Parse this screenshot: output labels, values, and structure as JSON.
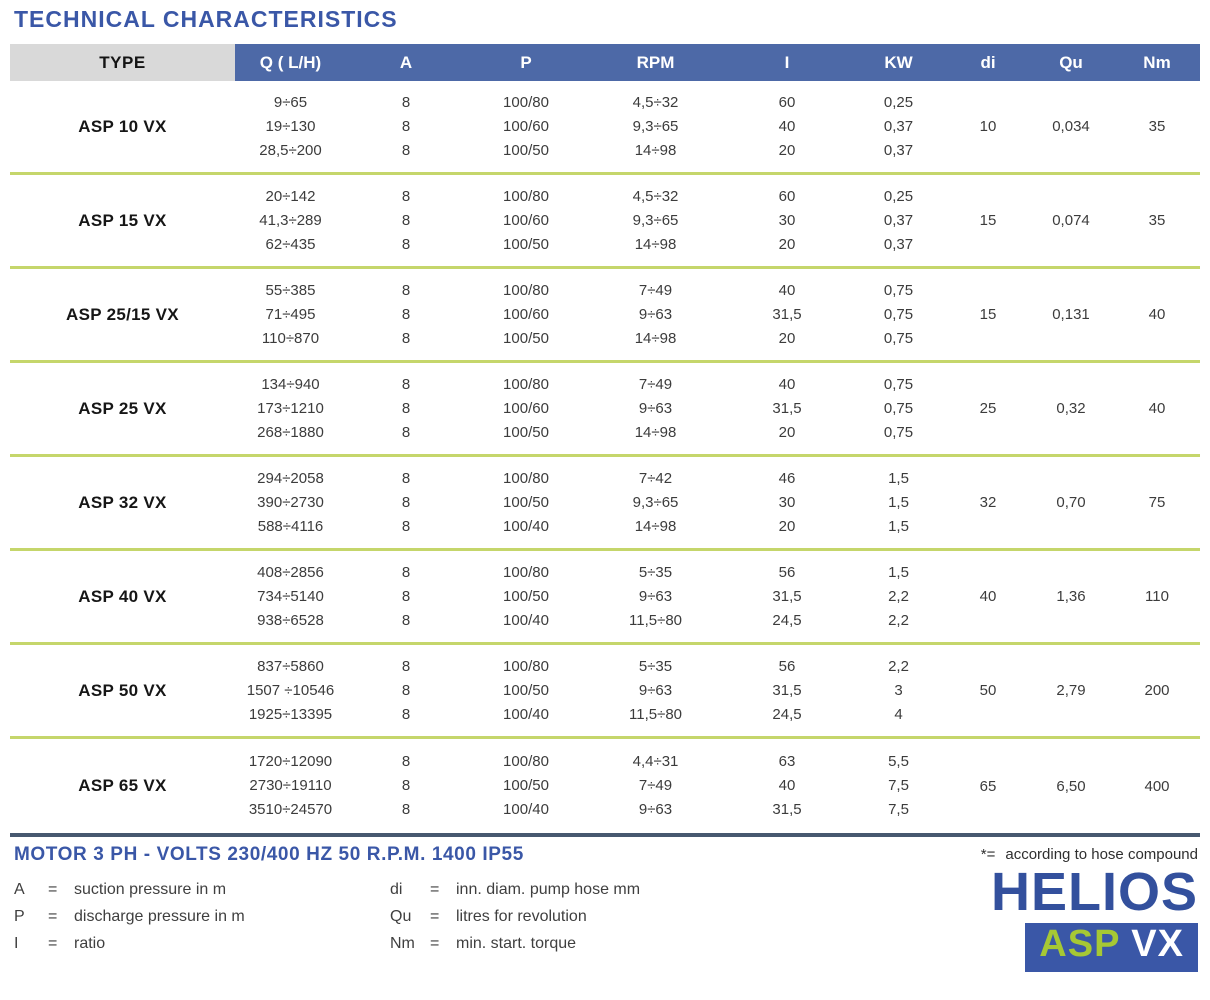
{
  "title": "TECHNICAL CHARACTERISTICS",
  "table": {
    "columns": [
      "TYPE",
      "Q ( L/H)",
      "A",
      "P",
      "RPM",
      "I",
      "KW",
      "di",
      "Qu",
      "Nm"
    ],
    "rows": [
      {
        "type": "ASP 10 VX",
        "q": [
          "9÷65",
          "19÷130",
          "28,5÷200"
        ],
        "a": [
          "8",
          "8",
          "8"
        ],
        "p": [
          "100/80",
          "100/60",
          "100/50"
        ],
        "rpm": [
          "4,5÷32",
          "9,3÷65",
          "14÷98"
        ],
        "i": [
          "60",
          "40",
          "20"
        ],
        "kw": [
          "0,25",
          "0,37",
          "0,37"
        ],
        "di": "10",
        "qu": "0,034",
        "nm": "35"
      },
      {
        "type": "ASP 15 VX",
        "q": [
          "20÷142",
          "41,3÷289",
          "62÷435"
        ],
        "a": [
          "8",
          "8",
          "8"
        ],
        "p": [
          "100/80",
          "100/60",
          "100/50"
        ],
        "rpm": [
          "4,5÷32",
          "9,3÷65",
          "14÷98"
        ],
        "i": [
          "60",
          "30",
          "20"
        ],
        "kw": [
          "0,25",
          "0,37",
          "0,37"
        ],
        "di": "15",
        "qu": "0,074",
        "nm": "35"
      },
      {
        "type": "ASP 25/15 VX",
        "q": [
          "55÷385",
          "71÷495",
          "110÷870"
        ],
        "a": [
          "8",
          "8",
          "8"
        ],
        "p": [
          "100/80",
          "100/60",
          "100/50"
        ],
        "rpm": [
          "7÷49",
          "9÷63",
          "14÷98"
        ],
        "i": [
          "40",
          "31,5",
          "20"
        ],
        "kw": [
          "0,75",
          "0,75",
          "0,75"
        ],
        "di": "15",
        "qu": "0,131",
        "nm": "40"
      },
      {
        "type": "ASP 25 VX",
        "q": [
          "134÷940",
          "173÷1210",
          "268÷1880"
        ],
        "a": [
          "8",
          "8",
          "8"
        ],
        "p": [
          "100/80",
          "100/60",
          "100/50"
        ],
        "rpm": [
          "7÷49",
          "9÷63",
          "14÷98"
        ],
        "i": [
          "40",
          "31,5",
          "20"
        ],
        "kw": [
          "0,75",
          "0,75",
          "0,75"
        ],
        "di": "25",
        "qu": "0,32",
        "nm": "40"
      },
      {
        "type": "ASP 32 VX",
        "q": [
          "294÷2058",
          "390÷2730",
          "588÷4116"
        ],
        "a": [
          "8",
          "8",
          "8"
        ],
        "p": [
          "100/80",
          "100/50",
          "100/40"
        ],
        "rpm": [
          "7÷42",
          "9,3÷65",
          "14÷98"
        ],
        "i": [
          "46",
          "30",
          "20"
        ],
        "kw": [
          "1,5",
          "1,5",
          "1,5"
        ],
        "di": "32",
        "qu": "0,70",
        "nm": "75"
      },
      {
        "type": "ASP 40 VX",
        "q": [
          "408÷2856",
          "734÷5140",
          "938÷6528"
        ],
        "a": [
          "8",
          "8",
          "8"
        ],
        "p": [
          "100/80",
          "100/50",
          "100/40"
        ],
        "rpm": [
          "5÷35",
          "9÷63",
          "11,5÷80"
        ],
        "i": [
          "56",
          "31,5",
          "24,5"
        ],
        "kw": [
          "1,5",
          "2,2",
          "2,2"
        ],
        "di": "40",
        "qu": "1,36",
        "nm": "110"
      },
      {
        "type": "ASP 50 VX",
        "q": [
          "837÷5860",
          "1507 ÷10546",
          "1925÷13395"
        ],
        "a": [
          "8",
          "8",
          "8"
        ],
        "p": [
          "100/80",
          "100/50",
          "100/40"
        ],
        "rpm": [
          "5÷35",
          "9÷63",
          "11,5÷80"
        ],
        "i": [
          "56",
          "31,5",
          "24,5"
        ],
        "kw": [
          "2,2",
          "3",
          "4"
        ],
        "di": "50",
        "qu": "2,79",
        "nm": "200"
      },
      {
        "type": "ASP 65 VX",
        "q": [
          "1720÷12090",
          "2730÷19110",
          "3510÷24570"
        ],
        "a": [
          "8",
          "8",
          "8"
        ],
        "p": [
          "100/80",
          "100/50",
          "100/40"
        ],
        "rpm": [
          "4,4÷31",
          "7÷49",
          "9÷63"
        ],
        "i": [
          "63",
          "40",
          "31,5"
        ],
        "kw": [
          "5,5",
          "7,5",
          "7,5"
        ],
        "di": "65",
        "qu": "6,50",
        "nm": "400"
      }
    ]
  },
  "footer": {
    "motor_line": "MOTOR 3 PH - VOLTS 230/400 HZ 50 R.P.M. 1400 IP55",
    "legend_left": [
      {
        "symbol": "A",
        "eq": "=",
        "desc": "suction pressure in m"
      },
      {
        "symbol": "P",
        "eq": "=",
        "desc": "discharge pressure in m"
      },
      {
        "symbol": "I",
        "eq": "=",
        "desc": "ratio"
      }
    ],
    "legend_right": [
      {
        "symbol": "di",
        "eq": "=",
        "desc": "inn. diam. pump hose mm"
      },
      {
        "symbol": "Qu",
        "eq": "=",
        "desc": "litres for revolution"
      },
      {
        "symbol": "Nm",
        "eq": "=",
        "desc": "min. start. torque"
      }
    ],
    "note_prefix": "*=",
    "note_text": "according to hose compound",
    "brand": "HELIOS",
    "badge": {
      "asp": "ASP",
      "vx": " VX"
    }
  },
  "colors": {
    "title_blue": "#3a57a7",
    "header_blue": "#4d69a7",
    "header_gray": "#d9d9d9",
    "separator_green": "#c5d66b",
    "bottom_line": "#47586f",
    "brand_blue": "#33509d",
    "badge_blue": "#3a57a7",
    "badge_lime": "#a6c834",
    "text": "#3c3c3c"
  }
}
